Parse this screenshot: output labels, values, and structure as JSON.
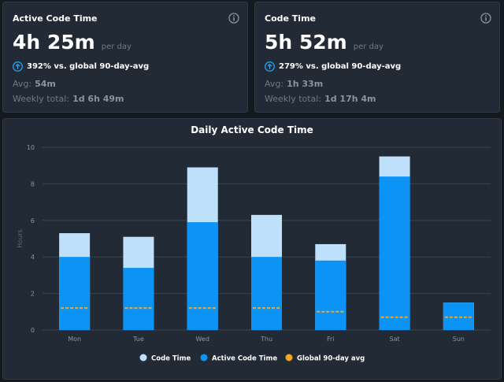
{
  "cards": [
    {
      "title": "Active Code Time",
      "value": "4h 25m",
      "unit": "per day",
      "change": "392% vs. global 90-day-avg",
      "avg_label": "Avg:",
      "avg_value": "54m",
      "weekly_label": "Weekly total:",
      "weekly_value": "1d 6h 49m"
    },
    {
      "title": "Code Time",
      "value": "5h 52m",
      "unit": "per day",
      "change": "279% vs. global 90-day-avg",
      "avg_label": "Avg:",
      "avg_value": "1h 33m",
      "weekly_label": "Weekly total:",
      "weekly_value": "1d 17h 4m"
    }
  ],
  "chart_data": {
    "type": "bar",
    "title": "Daily Active Code Time",
    "y_label": "Hours",
    "categories": [
      "Mon",
      "Tue",
      "Wed",
      "Thu",
      "Fri",
      "Sat",
      "Sun"
    ],
    "series": [
      {
        "name": "Code Time",
        "color": "#bfe0fb",
        "values": [
          5.3,
          5.1,
          8.9,
          6.3,
          4.7,
          9.5,
          1.5
        ]
      },
      {
        "name": "Active Code Time",
        "color": "#0b93f6",
        "values": [
          4.0,
          3.4,
          5.9,
          4.0,
          3.8,
          8.4,
          1.5
        ]
      },
      {
        "name": "Global 90-day avg",
        "color": "#f5a623",
        "type": "dash",
        "values": [
          1.2,
          1.2,
          1.2,
          1.2,
          1.0,
          0.7,
          0.7
        ]
      }
    ],
    "ylim": [
      0,
      10
    ],
    "yticks": [
      0,
      2,
      4,
      6,
      8,
      10
    ],
    "grid": true
  }
}
